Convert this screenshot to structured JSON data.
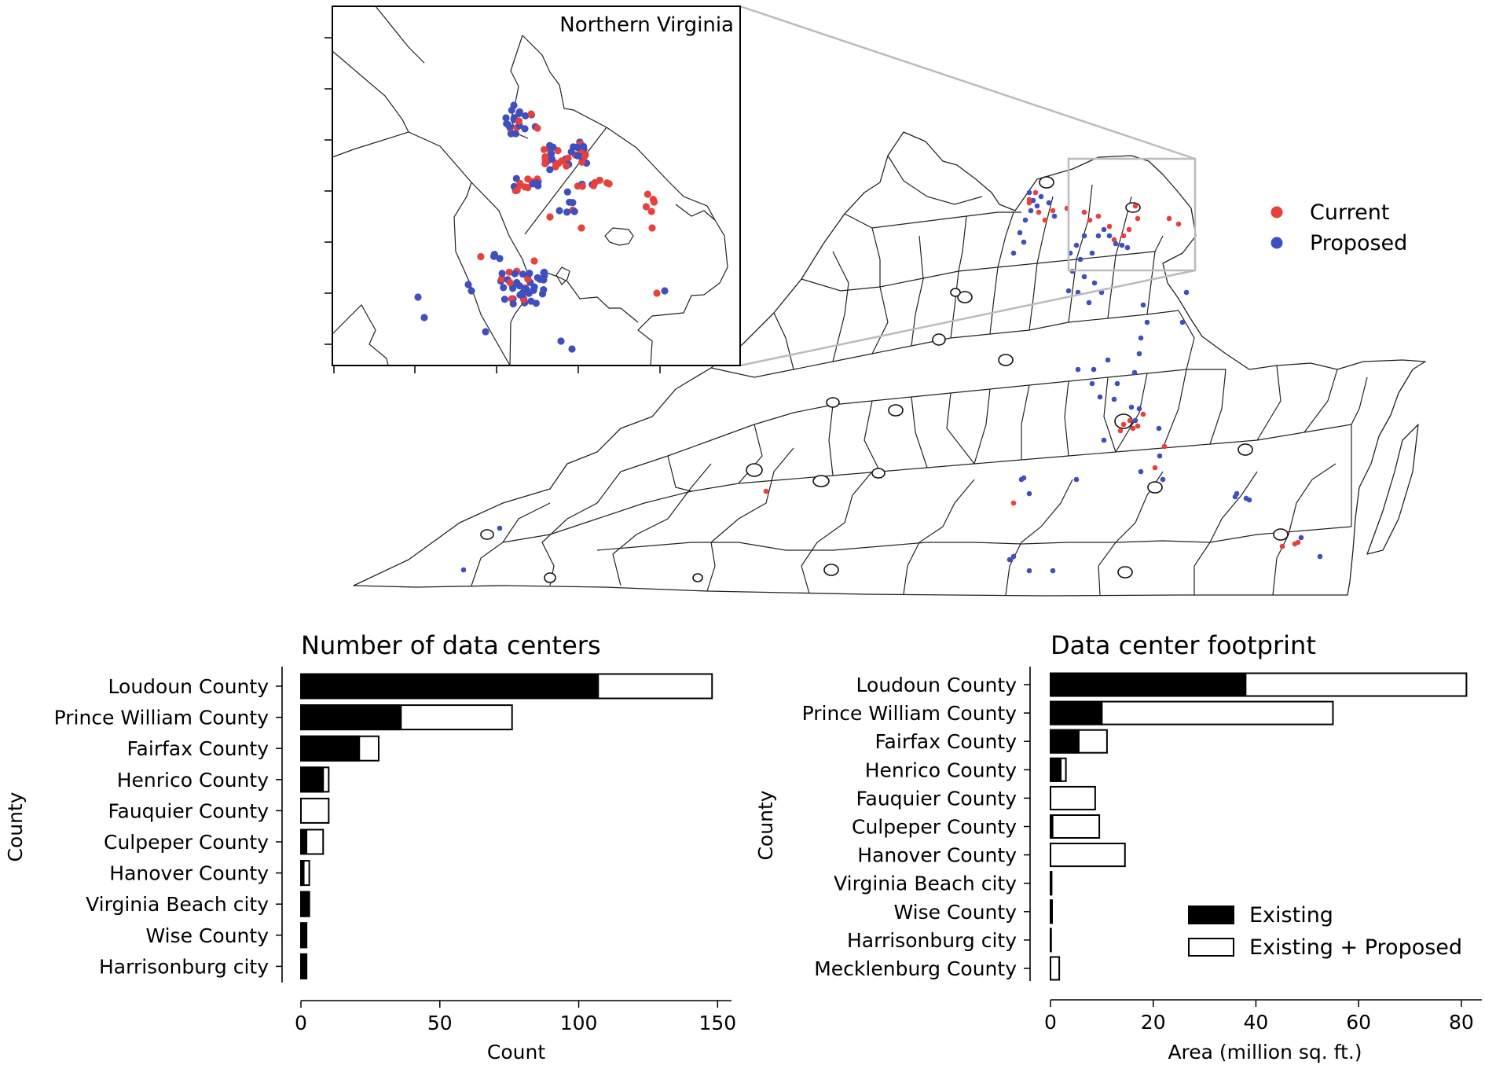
{
  "colors": {
    "current": "#e8413c",
    "proposed": "#3f4fc0",
    "existing_fill": "#000000",
    "proposed_fill": "#ffffff",
    "zoom_box": "#bbbbbb"
  },
  "map": {
    "inset_title": "Northern Virginia",
    "legend": [
      {
        "label": "Current",
        "color_key": "current"
      },
      {
        "label": "Proposed",
        "color_key": "proposed"
      }
    ]
  },
  "chart_data": [
    {
      "type": "bar",
      "orientation": "horizontal",
      "title": "Number of data centers",
      "xlabel": "Count",
      "ylabel": "County",
      "xlim": [
        0,
        155
      ],
      "xticks": [
        0,
        50,
        100,
        150
      ],
      "categories": [
        "Loudoun County",
        "Prince William County",
        "Fairfax County",
        "Henrico County",
        "Fauquier County",
        "Culpeper County",
        "Hanover County",
        "Virginia Beach city",
        "Wise County",
        "Harrisonburg city"
      ],
      "series": [
        {
          "name": "Existing",
          "values": [
            107,
            36,
            21,
            8,
            0,
            2,
            1,
            3,
            2,
            2
          ]
        },
        {
          "name": "Existing + Proposed",
          "values": [
            148,
            76,
            28,
            10,
            10,
            8,
            3,
            3,
            2,
            2
          ]
        }
      ]
    },
    {
      "type": "bar",
      "orientation": "horizontal",
      "title": "Data center footprint",
      "xlabel": "Area (million sq. ft.)",
      "ylabel": "County",
      "xlim": [
        0,
        84
      ],
      "xticks": [
        0,
        20,
        40,
        60,
        80
      ],
      "categories": [
        "Loudoun County",
        "Prince William County",
        "Fairfax County",
        "Henrico County",
        "Fauquier County",
        "Culpeper County",
        "Hanover County",
        "Virginia Beach city",
        "Wise County",
        "Harrisonburg city",
        "Mecklenburg County"
      ],
      "series": [
        {
          "name": "Existing",
          "values": [
            38,
            10,
            5.5,
            2,
            0,
            0.4,
            0,
            0.2,
            0.3,
            0.1,
            0
          ]
        },
        {
          "name": "Existing + Proposed",
          "values": [
            81,
            55,
            11,
            3,
            8.7,
            9.5,
            14.5,
            0.2,
            0.3,
            0.1,
            1.7
          ]
        }
      ],
      "legend": [
        "Existing",
        "Existing + Proposed"
      ],
      "legend_position": "lower-right"
    }
  ]
}
